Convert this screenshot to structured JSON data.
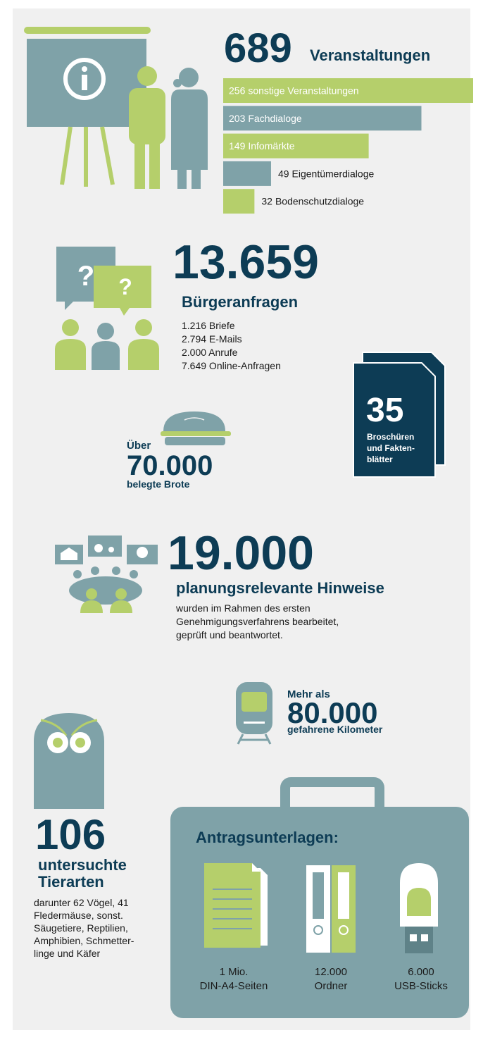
{
  "chart_data": {
    "type": "bar",
    "orientation": "horizontal",
    "categories": [
      "sonstige Veranstaltungen",
      "Fachdialoge",
      "Infomärkte",
      "Eigentümerdialoge",
      "Bodenschutzdialoge"
    ],
    "values": [
      256,
      203,
      149,
      49,
      32
    ],
    "colors": [
      "#b5cf6b",
      "#7fa2a8",
      "#b5cf6b",
      "#7fa2a8",
      "#b5cf6b"
    ]
  },
  "events": {
    "number": "689",
    "label": "Veranstaltungen"
  },
  "inquiries": {
    "question": "?",
    "number": "13.659",
    "label": "Bürgeranfragen",
    "items": [
      "1.216 Briefe",
      "2.794 E-Mails",
      "2.000 Anrufe",
      "7.649 Online-Anfragen"
    ]
  },
  "brochures": {
    "number": "35",
    "lines": [
      "Broschüren",
      "und Fakten-",
      "blätter"
    ]
  },
  "bread": {
    "prefix": "Über",
    "number": "70.000",
    "label": "belegte Brote"
  },
  "hints": {
    "number": "19.000",
    "label": "planungsrelevante Hinweise",
    "lines": [
      "wurden im Rahmen des ersten",
      "Genehmigungsverfahrens bearbeitet,",
      "geprüft und beantwortet."
    ]
  },
  "distance": {
    "prefix": "Mehr als",
    "number": "80.000",
    "label": "gefahrene Kilometer"
  },
  "species": {
    "number": "106",
    "label_lines": [
      "untersuchte",
      "Tierarten"
    ],
    "lines": [
      "darunter 62 Vögel, 41",
      "Fledermäuse, sonst.",
      "Säugetiere, Reptilien,",
      "Amphibien, Schmetter-",
      "linge und Käfer"
    ]
  },
  "documents": {
    "title": "Antragsunterlagen:",
    "items": [
      {
        "amount": "1 Mio.",
        "label": "DIN-A4-Seiten"
      },
      {
        "amount": "12.000",
        "label": "Ordner"
      },
      {
        "amount": "6.000",
        "label": "USB-Sticks"
      }
    ]
  }
}
